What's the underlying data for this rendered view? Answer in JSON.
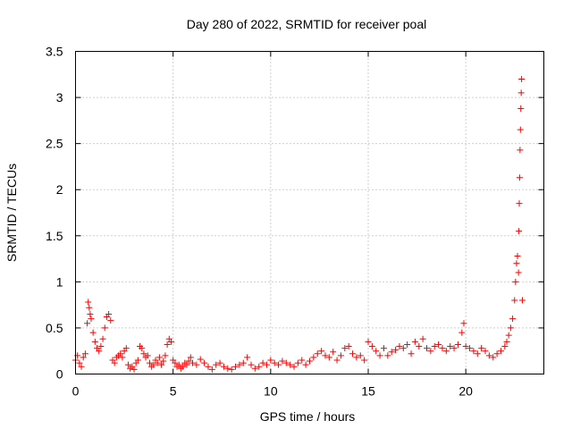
{
  "colors": {
    "marker": "#ff0000",
    "axis": "#000000",
    "grid": "#a0a0a0"
  },
  "chart_data": {
    "type": "scatter",
    "title": "Day 280 of 2022, SRMTID for receiver poal",
    "xlabel": "GPS time / hours",
    "ylabel": "SRMTID / TECUs",
    "xlim": [
      0,
      24
    ],
    "ylim": [
      0,
      3.5
    ],
    "grid": true,
    "marker": "+",
    "xticks": [
      0,
      5,
      10,
      15,
      20
    ],
    "xtick_labels": [
      "0",
      "5",
      "10",
      "15",
      "20"
    ],
    "yticks": [
      0,
      0.5,
      1,
      1.5,
      2,
      2.5,
      3,
      3.5
    ],
    "ytick_labels": [
      "0",
      "0.5",
      "1",
      "1.5",
      "2",
      "2.5",
      "3",
      "3.5"
    ],
    "series": [
      {
        "name": "SRMTID",
        "x": [
          0.0,
          0.1,
          0.2,
          0.3,
          0.4,
          0.5,
          0.6,
          0.65,
          0.7,
          0.75,
          0.8,
          0.9,
          1.0,
          1.1,
          1.2,
          1.3,
          1.4,
          1.5,
          1.6,
          1.7,
          1.8,
          1.9,
          2.0,
          2.1,
          2.2,
          2.3,
          2.4,
          2.5,
          2.6,
          2.7,
          2.8,
          2.9,
          3.0,
          3.1,
          3.2,
          3.3,
          3.4,
          3.5,
          3.6,
          3.7,
          3.8,
          3.9,
          4.0,
          4.1,
          4.2,
          4.3,
          4.4,
          4.5,
          4.6,
          4.7,
          4.8,
          4.9,
          5.0,
          5.1,
          5.2,
          5.3,
          5.4,
          5.5,
          5.6,
          5.7,
          5.8,
          5.9,
          6.0,
          6.2,
          6.4,
          6.6,
          6.8,
          7.0,
          7.2,
          7.4,
          7.6,
          7.8,
          8.0,
          8.2,
          8.4,
          8.6,
          8.8,
          9.0,
          9.2,
          9.4,
          9.6,
          9.8,
          10.0,
          10.2,
          10.4,
          10.6,
          10.8,
          11.0,
          11.2,
          11.4,
          11.6,
          11.8,
          12.0,
          12.2,
          12.4,
          12.6,
          12.8,
          13.0,
          13.2,
          13.4,
          13.6,
          13.8,
          14.0,
          14.2,
          14.4,
          14.6,
          14.8,
          15.0,
          15.2,
          15.4,
          15.6,
          15.8,
          16.0,
          16.2,
          16.4,
          16.6,
          16.8,
          17.0,
          17.2,
          17.4,
          17.6,
          17.8,
          18.0,
          18.2,
          18.4,
          18.6,
          18.8,
          19.0,
          19.2,
          19.4,
          19.6,
          19.8,
          19.9,
          20.0,
          20.2,
          20.4,
          20.6,
          20.8,
          21.0,
          21.2,
          21.4,
          21.6,
          21.8,
          22.0,
          22.1,
          22.2,
          22.3,
          22.4,
          22.5,
          22.55,
          22.6,
          22.65,
          22.7,
          22.72,
          22.74,
          22.76,
          22.78,
          22.8,
          22.82,
          22.84,
          22.86,
          22.9
        ],
        "y": [
          0.15,
          0.2,
          0.12,
          0.08,
          0.18,
          0.22,
          0.55,
          0.78,
          0.72,
          0.65,
          0.6,
          0.45,
          0.35,
          0.28,
          0.25,
          0.3,
          0.38,
          0.5,
          0.62,
          0.65,
          0.58,
          0.15,
          0.12,
          0.18,
          0.2,
          0.22,
          0.18,
          0.25,
          0.28,
          0.1,
          0.06,
          0.08,
          0.05,
          0.12,
          0.15,
          0.3,
          0.28,
          0.22,
          0.18,
          0.2,
          0.12,
          0.08,
          0.1,
          0.15,
          0.12,
          0.18,
          0.1,
          0.14,
          0.2,
          0.32,
          0.38,
          0.35,
          0.15,
          0.12,
          0.08,
          0.1,
          0.06,
          0.08,
          0.12,
          0.1,
          0.14,
          0.18,
          0.12,
          0.1,
          0.16,
          0.12,
          0.08,
          0.05,
          0.1,
          0.12,
          0.08,
          0.06,
          0.05,
          0.08,
          0.1,
          0.12,
          0.18,
          0.1,
          0.06,
          0.08,
          0.12,
          0.1,
          0.15,
          0.12,
          0.1,
          0.14,
          0.12,
          0.1,
          0.08,
          0.12,
          0.15,
          0.1,
          0.14,
          0.18,
          0.22,
          0.25,
          0.2,
          0.18,
          0.24,
          0.15,
          0.2,
          0.28,
          0.3,
          0.22,
          0.18,
          0.2,
          0.15,
          0.35,
          0.3,
          0.25,
          0.2,
          0.28,
          0.2,
          0.24,
          0.26,
          0.3,
          0.28,
          0.32,
          0.22,
          0.35,
          0.3,
          0.38,
          0.28,
          0.25,
          0.3,
          0.32,
          0.28,
          0.25,
          0.3,
          0.28,
          0.32,
          0.45,
          0.55,
          0.3,
          0.28,
          0.25,
          0.22,
          0.28,
          0.25,
          0.2,
          0.18,
          0.22,
          0.25,
          0.3,
          0.35,
          0.42,
          0.5,
          0.6,
          0.8,
          1.0,
          1.2,
          1.28,
          1.1,
          1.55,
          1.85,
          2.13,
          2.43,
          2.65,
          2.88,
          3.05,
          3.2,
          0.8
        ],
        "color": "#ff0000"
      }
    ]
  }
}
